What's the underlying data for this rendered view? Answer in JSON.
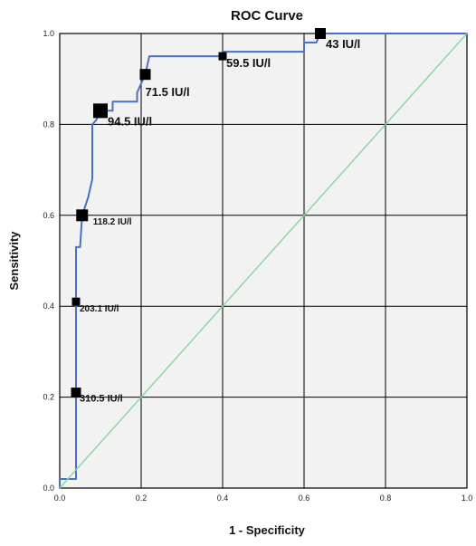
{
  "chart_data": {
    "type": "line",
    "title": "ROC Curve",
    "xlabel": "1 - Specificity",
    "ylabel": "Sensitivity",
    "xlim": [
      0,
      1
    ],
    "ylim": [
      0,
      1
    ],
    "x_ticks": [
      "0.0",
      "0.2",
      "0.4",
      "0.6",
      "0.8",
      "1.0"
    ],
    "y_ticks": [
      "0.0",
      "0.2",
      "0.4",
      "0.6",
      "0.8",
      "1.0"
    ],
    "grid": true,
    "series": [
      {
        "color": "#4a6fc4",
        "x": [
          0.0,
          0.0,
          0.04,
          0.04,
          0.04,
          0.04,
          0.04,
          0.05,
          0.055,
          0.055,
          0.07,
          0.08,
          0.08,
          0.09,
          0.1,
          0.13,
          0.13,
          0.19,
          0.19,
          0.21,
          0.22,
          0.32,
          0.4,
          0.4,
          0.47,
          0.6,
          0.6,
          0.63,
          0.64,
          1.0
        ],
        "y": [
          0.0,
          0.02,
          0.02,
          0.21,
          0.41,
          0.53,
          0.53,
          0.53,
          0.6,
          0.6,
          0.64,
          0.68,
          0.8,
          0.81,
          0.83,
          0.83,
          0.85,
          0.85,
          0.87,
          0.91,
          0.95,
          0.95,
          0.95,
          0.96,
          0.96,
          0.96,
          0.98,
          0.98,
          1.0,
          1.0
        ]
      },
      {
        "color": "#8fd6a0",
        "x": [
          0,
          1
        ],
        "y": [
          0,
          1
        ]
      }
    ],
    "cutoff_points": [
      {
        "label": "310.5 IU/l",
        "x": 0.04,
        "y": 0.21
      },
      {
        "label": "203.1 IU/l",
        "x": 0.04,
        "y": 0.41
      },
      {
        "label": "118.2 IU/l",
        "x": 0.055,
        "y": 0.6
      },
      {
        "label": "94.5 IU/l",
        "x": 0.1,
        "y": 0.83
      },
      {
        "label": "71.5 IU/l",
        "x": 0.21,
        "y": 0.91
      },
      {
        "label": "59.5 IU/l",
        "x": 0.4,
        "y": 0.95
      },
      {
        "label": "43 IU/l",
        "x": 0.64,
        "y": 1.0
      }
    ],
    "colors": {
      "plot_background": "#f2f2f2",
      "grid": "#000000",
      "roc_line": "#4a6fc4",
      "reference_line": "#8fd6a0",
      "marker": "#000000"
    }
  }
}
